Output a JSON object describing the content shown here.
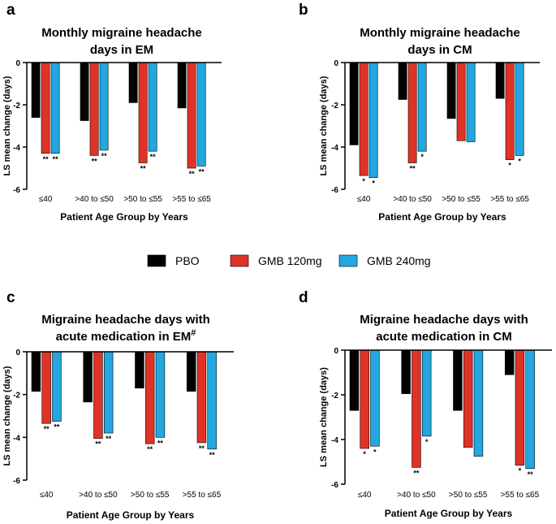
{
  "colors": {
    "PBO": "#000000",
    "GMB 120mg": "#e03327",
    "GMB 240mg": "#22a7e0"
  },
  "legend": {
    "items": [
      {
        "label": "PBO",
        "color": "#000000"
      },
      {
        "label": "GMB 120mg",
        "color": "#e03327"
      },
      {
        "label": "GMB 240mg",
        "color": "#22a7e0"
      }
    ]
  },
  "chart_data": [
    {
      "panel": "a",
      "type": "bar",
      "title": [
        "Monthly migraine headache",
        "days in EM"
      ],
      "ylabel": "LS mean change (days)",
      "xlabel": "Patient Age Group by Years",
      "categories": [
        "≤40",
        ">40 to ≤50",
        ">50 to ≤55",
        ">55 to ≤65"
      ],
      "ylim": [
        -6,
        0
      ],
      "yticks": [
        0,
        -2,
        -4,
        -6
      ],
      "series": [
        {
          "name": "PBO",
          "values": [
            -2.6,
            -2.75,
            -1.9,
            -2.15
          ],
          "sig": [
            "",
            "",
            "",
            ""
          ]
        },
        {
          "name": "GMB 120mg",
          "values": [
            -4.3,
            -4.4,
            -4.75,
            -5.0
          ],
          "sig": [
            "**",
            "**",
            "**",
            "**"
          ]
        },
        {
          "name": "GMB 240mg",
          "values": [
            -4.3,
            -4.15,
            -4.2,
            -4.9
          ],
          "sig": [
            "**",
            "**",
            "**",
            "**"
          ]
        }
      ]
    },
    {
      "panel": "b",
      "type": "bar",
      "title": [
        "Monthly migraine headache",
        "days in CM"
      ],
      "ylabel": "LS mean change (days)",
      "xlabel": "Patient Age Group by Years",
      "categories": [
        "≤40",
        ">40 to ≤50",
        ">50 to ≤55",
        ">55 to ≤65"
      ],
      "ylim": [
        -6,
        0
      ],
      "yticks": [
        0,
        -2,
        -4,
        -6
      ],
      "series": [
        {
          "name": "PBO",
          "values": [
            -3.9,
            -1.75,
            -2.65,
            -1.7
          ],
          "sig": [
            "",
            "",
            "",
            ""
          ]
        },
        {
          "name": "GMB 120mg",
          "values": [
            -5.35,
            -4.75,
            -3.7,
            -4.6
          ],
          "sig": [
            "*",
            "**",
            "",
            "*"
          ]
        },
        {
          "name": "GMB 240mg",
          "values": [
            -5.45,
            -4.2,
            -3.75,
            -4.4
          ],
          "sig": [
            "*",
            "*",
            "",
            "*"
          ]
        }
      ]
    },
    {
      "panel": "c",
      "type": "bar",
      "title": [
        "Migraine headache days with",
        "acute medication in EM",
        "#"
      ],
      "ylabel": "LS mean change (days)",
      "xlabel": "Patient Age Group by Years",
      "categories": [
        "≤40",
        ">40 to ≤50",
        ">50 to ≤55",
        ">55 to ≤65"
      ],
      "ylim": [
        -6,
        0
      ],
      "yticks": [
        0,
        -2,
        -4,
        -6
      ],
      "series": [
        {
          "name": "PBO",
          "values": [
            -1.85,
            -2.35,
            -1.7,
            -1.85
          ],
          "sig": [
            "",
            "",
            "",
            ""
          ]
        },
        {
          "name": "GMB 120mg",
          "values": [
            -3.35,
            -4.05,
            -4.3,
            -4.25
          ],
          "sig": [
            "**",
            "**",
            "**",
            "**"
          ]
        },
        {
          "name": "GMB 240mg",
          "values": [
            -3.25,
            -3.8,
            -4.0,
            -4.55
          ],
          "sig": [
            "**",
            "**",
            "**",
            "**"
          ]
        }
      ]
    },
    {
      "panel": "d",
      "type": "bar",
      "title": [
        "Migraine headache days with",
        "acute medication in CM"
      ],
      "ylabel": "LS mean change (days)",
      "xlabel": "Patient Age Group by Years",
      "categories": [
        "≤40",
        ">40 to ≤50",
        ">50 to ≤55",
        ">55 to ≤65"
      ],
      "ylim": [
        -6,
        0
      ],
      "yticks": [
        0,
        -2,
        -4,
        -6
      ],
      "series": [
        {
          "name": "PBO",
          "values": [
            -2.7,
            -1.95,
            -2.7,
            -1.1
          ],
          "sig": [
            "",
            "",
            "",
            ""
          ]
        },
        {
          "name": "GMB 120mg",
          "values": [
            -4.4,
            -5.25,
            -4.35,
            -5.15
          ],
          "sig": [
            "*",
            "**",
            "",
            "*"
          ]
        },
        {
          "name": "GMB 240mg",
          "values": [
            -4.3,
            -3.85,
            -4.75,
            -5.3
          ],
          "sig": [
            "*",
            "*",
            "",
            "**"
          ]
        }
      ]
    }
  ]
}
